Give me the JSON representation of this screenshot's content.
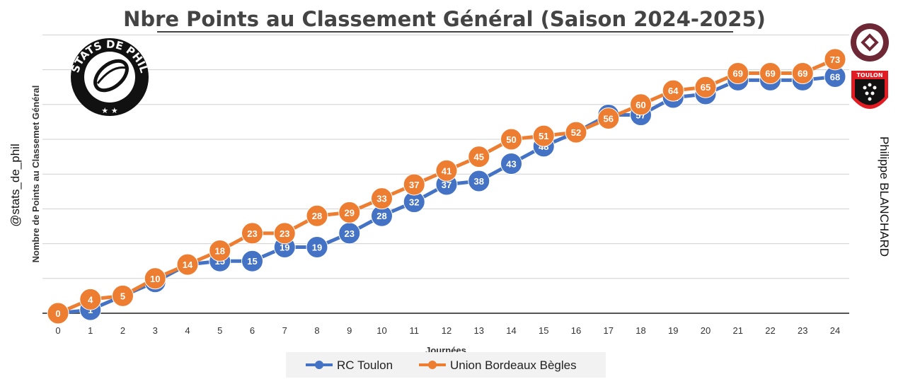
{
  "header": {
    "title": "Nbre Points au Classement Général (Saison 2024-2025)"
  },
  "credits": {
    "handle": "@stats_de_phil",
    "author": "Philippe BLANCHARD",
    "logo_text": "STATS DE PHIL",
    "logo_ubb": "UNION BORDEAUX BÈGLES",
    "logo_toulon": "TOULON"
  },
  "chart_data": {
    "type": "line",
    "title": "Nbre Points au Classement Général (Saison 2024-2025)",
    "xlabel": "Journées",
    "ylabel": "Nombre de Points au Classemet Général",
    "x": [
      0,
      1,
      2,
      3,
      4,
      5,
      6,
      7,
      8,
      9,
      10,
      11,
      12,
      13,
      14,
      15,
      16,
      17,
      18,
      19,
      20,
      21,
      22,
      23,
      24
    ],
    "ylim": [
      0,
      80
    ],
    "grid": true,
    "legend_position": "bottom",
    "series": [
      {
        "name": "RC Toulon",
        "color": "#4472C4",
        "values": [
          0,
          1,
          5,
          9,
          14,
          15,
          15,
          19,
          19,
          23,
          28,
          32,
          37,
          38,
          43,
          48,
          52,
          57,
          57,
          62,
          63,
          67,
          67,
          67,
          68
        ]
      },
      {
        "name": "Union Bordeaux Bègles",
        "color": "#ED7D31",
        "values": [
          0,
          4,
          5,
          10,
          14,
          18,
          23,
          23,
          28,
          29,
          33,
          37,
          41,
          45,
          50,
          51,
          52,
          56,
          60,
          64,
          65,
          69,
          69,
          69,
          73
        ]
      }
    ]
  }
}
